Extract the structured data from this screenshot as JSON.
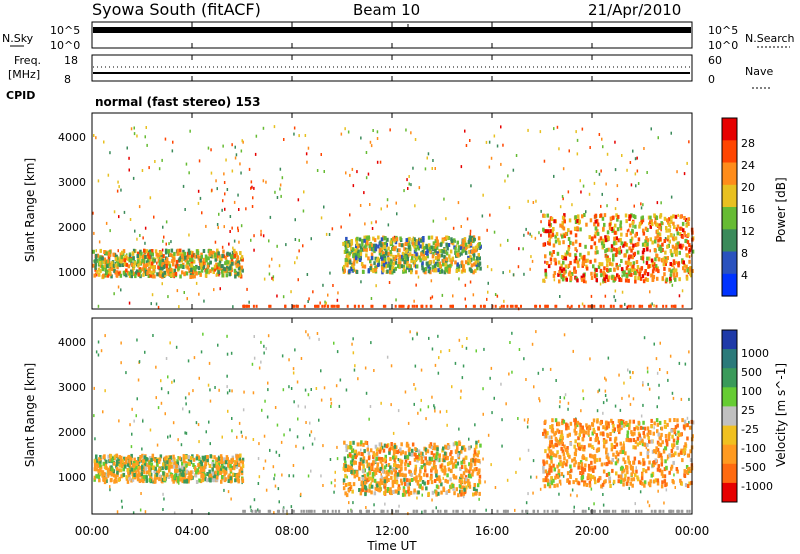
{
  "header": {
    "station": "Syowa South (fitACF)",
    "beam": "Beam 10",
    "date": "21/Apr/2010"
  },
  "noise_panel": {
    "left_label": "N.Sky",
    "right_label": "N.Search",
    "left_ticks": [
      "10^5",
      "10^0"
    ],
    "right_ticks": [
      "10^5",
      "10^0"
    ]
  },
  "freq_panel": {
    "left_label_line1": "Freq.",
    "left_label_line2": "[MHz]",
    "left_ticks": [
      "18",
      "8"
    ],
    "right_label": "Nave",
    "right_ticks": [
      "60",
      "0"
    ],
    "cpid_label": "CPID",
    "mode_text": "normal (fast stereo) 153"
  },
  "time_axis": {
    "label": "Time UT",
    "ticks": [
      "00:00",
      "04:00",
      "08:00",
      "12:00",
      "16:00",
      "20:00",
      "00:00"
    ]
  },
  "power_panel": {
    "ylabel": "Slant Range [km]",
    "yticks": [
      "1000",
      "2000",
      "3000",
      "4000"
    ],
    "colorbar_label": "Power [dB]",
    "colorbar_ticks": [
      "4",
      "8",
      "12",
      "16",
      "20",
      "24",
      "28"
    ],
    "colors": [
      "#0033ff",
      "#2a52be",
      "#3a8a5a",
      "#66bb33",
      "#e8c020",
      "#ff8c1a",
      "#ff4500",
      "#e60000"
    ]
  },
  "velocity_panel": {
    "ylabel": "Slant Range [km]",
    "yticks": [
      "1000",
      "2000",
      "3000",
      "4000"
    ],
    "colorbar_label": "Velocity [m s^-1]",
    "colorbar_ticks": [
      "1000",
      "500",
      "100",
      "25",
      "-25",
      "-100",
      "-500",
      "-1000"
    ],
    "colors": [
      "#1f3aa8",
      "#2b7a7a",
      "#3a9a5a",
      "#66cc33",
      "#c0c0c0",
      "#f0c020",
      "#ff9a20",
      "#ff6a10",
      "#e60000"
    ]
  },
  "chart_data": [
    {
      "type": "heatmap",
      "title": "Power",
      "xlabel": "Time UT",
      "ylabel": "Slant Range [km]",
      "xlim": [
        "00:00",
        "24:00"
      ],
      "ylim": [
        180,
        4600
      ],
      "colorbar": {
        "label": "Power [dB]",
        "range": [
          0,
          30
        ]
      },
      "regions": [
        {
          "time": [
            "00:00",
            "06:00"
          ],
          "range_km": [
            900,
            1500
          ],
          "power_db": 16
        },
        {
          "time": [
            "10:00",
            "15:30"
          ],
          "range_km": [
            1000,
            1800
          ],
          "power_db": 14
        },
        {
          "time": [
            "18:00",
            "24:00"
          ],
          "range_km": [
            800,
            2300
          ],
          "power_db": 20
        }
      ]
    },
    {
      "type": "heatmap",
      "title": "Velocity",
      "xlabel": "Time UT",
      "ylabel": "Slant Range [km]",
      "xlim": [
        "00:00",
        "24:00"
      ],
      "ylim": [
        180,
        4600
      ],
      "colorbar": {
        "label": "Velocity [m s^-1]",
        "range": [
          -1000,
          1000
        ]
      },
      "regions": [
        {
          "time": [
            "00:00",
            "06:00"
          ],
          "range_km": [
            900,
            1500
          ],
          "velocity": -100
        },
        {
          "time": [
            "10:00",
            "15:30"
          ],
          "range_km": [
            600,
            1800
          ],
          "velocity": -200
        },
        {
          "time": [
            "18:00",
            "24:00"
          ],
          "range_km": [
            800,
            2300
          ],
          "velocity": -300
        }
      ]
    }
  ]
}
